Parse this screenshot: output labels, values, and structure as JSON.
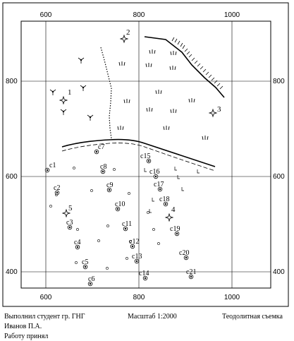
{
  "grid": {
    "x_labels": [
      "600",
      "800",
      "1000"
    ],
    "y_labels": [
      "800",
      "600",
      "400"
    ]
  },
  "traverse_points": [
    {
      "label": "1"
    },
    {
      "label": "2"
    },
    {
      "label": "3"
    },
    {
      "label": "4"
    },
    {
      "label": "5"
    }
  ],
  "survey_stations": [
    {
      "label": "c1"
    },
    {
      "label": "c2"
    },
    {
      "label": "c3"
    },
    {
      "label": "c4"
    },
    {
      "label": "c5"
    },
    {
      "label": "c6"
    },
    {
      "label": "c7"
    },
    {
      "label": "c8"
    },
    {
      "label": "c9"
    },
    {
      "label": "c10"
    },
    {
      "label": "c11"
    },
    {
      "label": "c12"
    },
    {
      "label": "c13"
    },
    {
      "label": "c14"
    },
    {
      "label": "c15"
    },
    {
      "label": "c16"
    },
    {
      "label": "c17"
    },
    {
      "label": "c18"
    },
    {
      "label": "c19"
    },
    {
      "label": "c20"
    },
    {
      "label": "c21"
    }
  ],
  "footer": {
    "author_line": "Выполнил студент гр. ГНГ",
    "author_name": "Иванов П.А.",
    "accepted": "Работу принял",
    "scale": "Масштаб 1:2000",
    "survey_type": "Теодолитная съемка"
  }
}
